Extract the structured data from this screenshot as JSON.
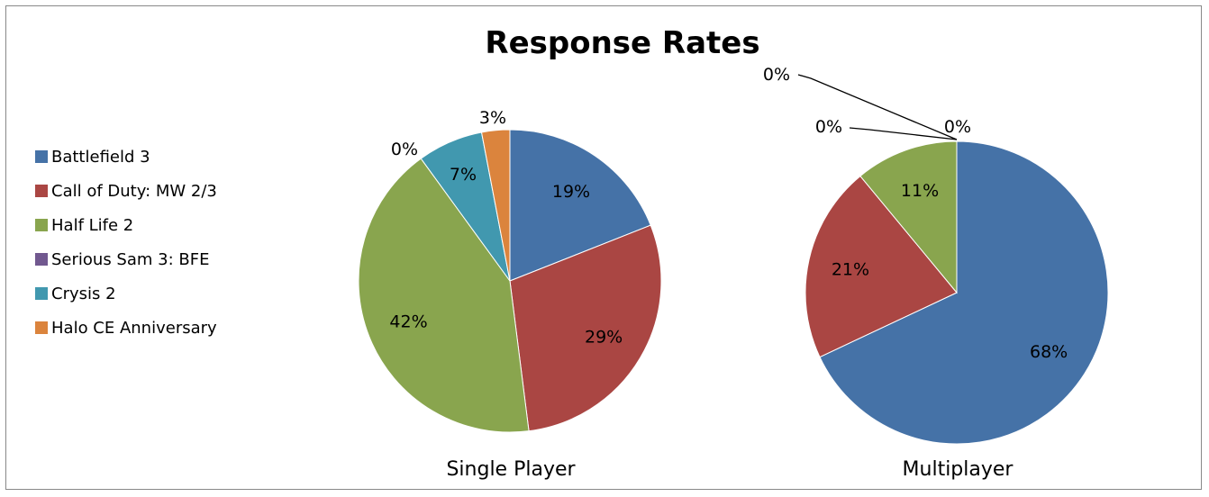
{
  "chart_data": {
    "type": "pie",
    "title": "Response Rates",
    "legend_position": "left",
    "categories": [
      "Battlefield 3",
      "Call of Duty: MW 2/3",
      "Half Life 2",
      "Serious Sam 3: BFE",
      "Crysis 2",
      "Halo CE Anniversary"
    ],
    "colors": [
      "#4572A7",
      "#AA4643",
      "#89A54E",
      "#71588F",
      "#4198AF",
      "#DB843D"
    ],
    "pies": [
      {
        "name": "Single Player",
        "values": [
          19,
          29,
          42,
          0,
          7,
          3
        ],
        "labels": [
          "19%",
          "29%",
          "42%",
          "0%",
          "7%",
          "3%"
        ]
      },
      {
        "name": "Multiplayer",
        "values": [
          68,
          21,
          11,
          0,
          0,
          0
        ],
        "labels": [
          "68%",
          "21%",
          "11%",
          "0%",
          "0%",
          "0%"
        ]
      }
    ]
  }
}
